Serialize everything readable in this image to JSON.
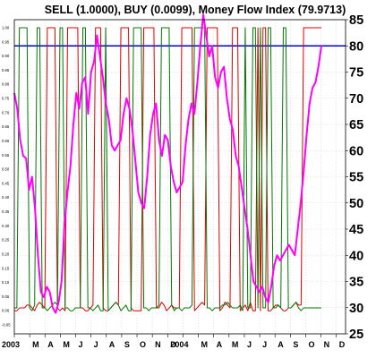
{
  "chart_data": {
    "type": "line",
    "title": "SELL (1.0000), BUY (0.0099), Money Flow Index (79.9713)",
    "xlabel": "",
    "ylabel": "",
    "x_ticks": [
      "2003",
      "M",
      "A",
      "M",
      "J",
      "J",
      "A",
      "S",
      "O",
      "N",
      "D",
      "2004",
      "M",
      "A",
      "M",
      "J",
      "J",
      "A",
      "S",
      "O",
      "N",
      "D"
    ],
    "left_axis": {
      "ylim": [
        -0.05,
        1.0
      ],
      "ticks": [
        "1.00",
        "0.95",
        "0.90",
        "0.85",
        "0.80",
        "0.75",
        "0.70",
        "0.65",
        "0.60",
        "0.55",
        "0.50",
        "0.45",
        "0.40",
        "0.35",
        "0.30",
        "0.25",
        "0.20",
        "0.15",
        "0.10",
        "0.05",
        "0.00",
        "-0.05"
      ]
    },
    "right_axis": {
      "ylim": [
        25,
        85
      ],
      "ticks": [
        "85",
        "80",
        "75",
        "70",
        "65",
        "60",
        "55",
        "50",
        "45",
        "40",
        "35",
        "30",
        "25"
      ]
    },
    "reference_line": {
      "value": 80,
      "color": "#0000cc"
    },
    "grid": true,
    "series": [
      {
        "name": "SELL",
        "axis": "left",
        "color": "#dd0000",
        "values": [
          0,
          0,
          0.01,
          0.01,
          0.01,
          0.02,
          0.02,
          0.01,
          0,
          0.02,
          0.03,
          0.02,
          0.01,
          1,
          1,
          1,
          1,
          0.01,
          0,
          0.01,
          0,
          1,
          1,
          1,
          1,
          1,
          0.01,
          0.01,
          0,
          0,
          0.01,
          0.02,
          1,
          1,
          1,
          0.01,
          0,
          0,
          0.01,
          0.02,
          0.03,
          0.02,
          1,
          1,
          1,
          1,
          0.01,
          0,
          0,
          0,
          0,
          1,
          1,
          1,
          1,
          1,
          0.01,
          0.01,
          0.03,
          0.02,
          0,
          0.01,
          0.02,
          0.01,
          0.01,
          0.01,
          1,
          1,
          1,
          1,
          1,
          0,
          0.01,
          0.02,
          0.03,
          0.02,
          1,
          1,
          1,
          1,
          1,
          0,
          0.01,
          0.03,
          0.02,
          0.01,
          1,
          1,
          1,
          0,
          0.01,
          0.02,
          0,
          0.03,
          0,
          0,
          1,
          0,
          1,
          1,
          0,
          0,
          0.01,
          0.02,
          0.02,
          0.01,
          0,
          0,
          0.01,
          0.01,
          0.02,
          0.03,
          0.02,
          0.02,
          1,
          1,
          1,
          1,
          1,
          1,
          1,
          1
        ]
      },
      {
        "name": "BUY",
        "axis": "left",
        "color": "#007700",
        "values": [
          0.01,
          0.01,
          1,
          1,
          1,
          1,
          0.01,
          0,
          0.02,
          1,
          1,
          0.01,
          0.01,
          0,
          0.01,
          0.02,
          0.03,
          0.02,
          1,
          1,
          0.01,
          0.01,
          0,
          0,
          0.01,
          0.01,
          0.01,
          1,
          1,
          0.01,
          0.01,
          0,
          0.01,
          0.02,
          0,
          0,
          1,
          0,
          0.01,
          0.02,
          0.03,
          0.02,
          0,
          0.01,
          0.02,
          0,
          0,
          1,
          1,
          1,
          1,
          0.01,
          0.01,
          0,
          0.01,
          0.01,
          0.01,
          0.02,
          1,
          1,
          1,
          1,
          0.02,
          0,
          0.01,
          0.01,
          0,
          0.01,
          0.01,
          0.01,
          0.02,
          1,
          1,
          1,
          1,
          1,
          0.01,
          0.01,
          0,
          0.01,
          0.01,
          0.01,
          0.02,
          0.02,
          0.03,
          0.02,
          0.01,
          0.01,
          0.01,
          0.02,
          0,
          1,
          0.01,
          0.01,
          1,
          1,
          0.01,
          1,
          0.01,
          0.01,
          1,
          1,
          0.01,
          0.01,
          0.02,
          0.01,
          1,
          1,
          0.01,
          0.01,
          0.02,
          0.03,
          0.01,
          0,
          0.01,
          0.01,
          0.01,
          0.01,
          0.01,
          0.01,
          0.01,
          0.01
        ]
      },
      {
        "name": "Money Flow Index",
        "axis": "right",
        "color": "#ff00ff",
        "values": [
          71,
          68,
          62,
          59,
          58.5,
          52.5,
          55,
          49,
          40,
          33,
          32,
          34,
          33,
          30,
          29,
          31,
          35,
          46,
          52,
          57,
          65,
          71,
          68,
          73,
          74,
          67,
          75,
          77,
          82,
          78,
          74,
          69,
          66,
          61,
          60,
          61,
          62,
          67,
          70,
          68,
          64,
          58,
          52,
          50,
          49,
          55,
          63,
          67,
          69,
          62,
          59,
          63,
          62,
          57,
          54,
          52,
          53,
          54,
          61,
          66,
          69,
          67,
          73,
          80,
          86,
          82,
          78,
          80,
          74,
          72,
          75,
          76,
          70,
          66,
          64,
          59,
          57,
          53,
          49,
          45,
          40,
          35,
          34,
          33,
          34,
          32,
          31,
          34,
          38,
          40,
          39,
          40,
          41,
          42,
          41,
          40,
          45,
          50,
          56,
          63,
          69,
          72,
          73,
          76,
          80
        ]
      }
    ]
  }
}
